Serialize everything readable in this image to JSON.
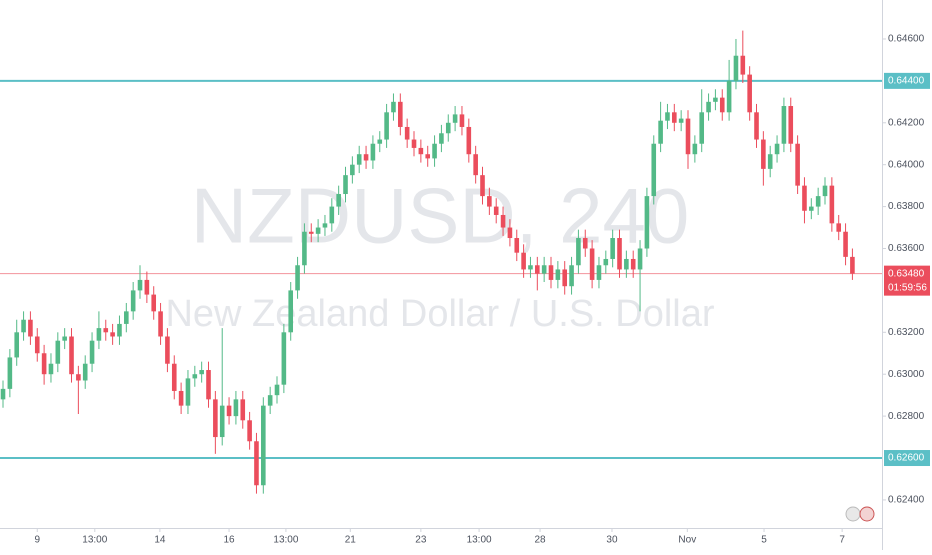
{
  "chart_data": {
    "type": "candlestick",
    "watermark": "NZDUSD, 240",
    "subtitle": "New Zealand Dollar / U.S. Dollar",
    "up_color": "#53b987",
    "down_color": "#eb4d5c",
    "ylim": [
      0.62266,
      0.64786
    ],
    "yticks": [
      {
        "value": 0.646,
        "label": "0.64600"
      },
      {
        "value": 0.642,
        "label": "0.64200"
      },
      {
        "value": 0.64,
        "label": "0.64000"
      },
      {
        "value": 0.638,
        "label": "0.63800"
      },
      {
        "value": 0.636,
        "label": "0.63600"
      },
      {
        "value": 0.632,
        "label": "0.63200"
      },
      {
        "value": 0.63,
        "label": "0.63000"
      },
      {
        "value": 0.628,
        "label": "0.62800"
      },
      {
        "value": 0.624,
        "label": "0.62400"
      }
    ],
    "xlim": [
      -0.44,
      128.32
    ],
    "xticks": [
      {
        "value": 5,
        "label": "9"
      },
      {
        "value": 13.4,
        "label": "13:00"
      },
      {
        "value": 22.9,
        "label": "14"
      },
      {
        "value": 33,
        "label": "16"
      },
      {
        "value": 41.3,
        "label": "13:00"
      },
      {
        "value": 50.7,
        "label": "21"
      },
      {
        "value": 61,
        "label": "23"
      },
      {
        "value": 69.5,
        "label": "13:00"
      },
      {
        "value": 78.4,
        "label": "28"
      },
      {
        "value": 88.9,
        "label": "30"
      },
      {
        "value": 99.9,
        "label": "Nov"
      },
      {
        "value": 111.1,
        "label": "5"
      },
      {
        "value": 122.5,
        "label": "7"
      }
    ],
    "hlines": [
      {
        "value": 0.644,
        "label": "0.64400",
        "color": "#5bbfc6"
      },
      {
        "value": 0.626,
        "label": "0.62600",
        "color": "#5bbfc6"
      }
    ],
    "last_price": {
      "value": 0.6348,
      "label": "0.63480",
      "countdown": "01:59:56",
      "color": "#eb4d5c"
    },
    "open": [
      0.6288,
      0.6293,
      0.6308,
      0.632,
      0.6326,
      0.6318,
      0.631,
      0.63,
      0.6305,
      0.6316,
      0.6318,
      0.63,
      0.6297,
      0.6305,
      0.6316,
      0.6322,
      0.632,
      0.6318,
      0.6324,
      0.633,
      0.634,
      0.6345,
      0.6338,
      0.633,
      0.6318,
      0.6305,
      0.6292,
      0.6285,
      0.6298,
      0.63,
      0.6302,
      0.6288,
      0.627,
      0.6285,
      0.628,
      0.6288,
      0.6278,
      0.6268,
      0.6247,
      0.6285,
      0.629,
      0.6295,
      0.632,
      0.634,
      0.6352,
      0.6368,
      0.6367,
      0.637,
      0.6372,
      0.638,
      0.6386,
      0.6395,
      0.64,
      0.6405,
      0.6402,
      0.641,
      0.6412,
      0.6425,
      0.643,
      0.6418,
      0.6412,
      0.6408,
      0.6405,
      0.6403,
      0.641,
      0.6415,
      0.642,
      0.6424,
      0.6418,
      0.6405,
      0.6395,
      0.6385,
      0.638,
      0.6376,
      0.637,
      0.6365,
      0.6358,
      0.635,
      0.6352,
      0.6348,
      0.6352,
      0.6345,
      0.635,
      0.6342,
      0.6352,
      0.6365,
      0.636,
      0.6345,
      0.6352,
      0.6355,
      0.6365,
      0.635,
      0.6355,
      0.635,
      0.636,
      0.6385,
      0.641,
      0.6421,
      0.6425,
      0.642,
      0.6422,
      0.6405,
      0.641,
      0.6425,
      0.643,
      0.6432,
      0.6425,
      0.644,
      0.6452,
      0.6443,
      0.6425,
      0.6412,
      0.6398,
      0.6405,
      0.641,
      0.6428,
      0.641,
      0.639,
      0.6378,
      0.638,
      0.6385,
      0.639,
      0.6372,
      0.6368,
      0.6356
    ],
    "high": [
      0.6297,
      0.6312,
      0.6326,
      0.633,
      0.633,
      0.6322,
      0.6314,
      0.631,
      0.632,
      0.6322,
      0.6322,
      0.6304,
      0.6309,
      0.632,
      0.633,
      0.6326,
      0.6324,
      0.6328,
      0.6334,
      0.6344,
      0.6352,
      0.6349,
      0.6342,
      0.6334,
      0.6322,
      0.6309,
      0.6296,
      0.6302,
      0.6304,
      0.6306,
      0.6306,
      0.6292,
      0.6322,
      0.6289,
      0.6292,
      0.6292,
      0.6282,
      0.6272,
      0.6289,
      0.6294,
      0.6299,
      0.6324,
      0.6344,
      0.6356,
      0.6372,
      0.6372,
      0.6374,
      0.6376,
      0.6384,
      0.639,
      0.6399,
      0.6404,
      0.6409,
      0.6409,
      0.6414,
      0.6416,
      0.6429,
      0.6434,
      0.6434,
      0.6422,
      0.6416,
      0.6412,
      0.6409,
      0.6414,
      0.6419,
      0.6424,
      0.6428,
      0.6428,
      0.6422,
      0.6409,
      0.6399,
      0.6389,
      0.6384,
      0.638,
      0.6374,
      0.6369,
      0.6362,
      0.6356,
      0.6356,
      0.6356,
      0.6356,
      0.6354,
      0.6354,
      0.6356,
      0.6369,
      0.6369,
      0.6364,
      0.6356,
      0.6359,
      0.6369,
      0.6369,
      0.6359,
      0.6359,
      0.6364,
      0.6389,
      0.6414,
      0.643,
      0.6429,
      0.6429,
      0.6426,
      0.6426,
      0.6414,
      0.6436,
      0.6434,
      0.6436,
      0.6436,
      0.645,
      0.646,
      0.6464,
      0.6447,
      0.6429,
      0.6416,
      0.6409,
      0.6414,
      0.6432,
      0.6432,
      0.6414,
      0.6394,
      0.6384,
      0.6389,
      0.6394,
      0.6394,
      0.6376,
      0.6372,
      0.636
    ],
    "low": [
      0.6284,
      0.6289,
      0.6304,
      0.6316,
      0.6314,
      0.6306,
      0.6295,
      0.6296,
      0.6301,
      0.6312,
      0.6296,
      0.6281,
      0.6293,
      0.6301,
      0.6312,
      0.6316,
      0.6314,
      0.6314,
      0.632,
      0.6326,
      0.6336,
      0.6334,
      0.6326,
      0.6314,
      0.6301,
      0.6288,
      0.6281,
      0.6281,
      0.6294,
      0.6296,
      0.6284,
      0.6262,
      0.6266,
      0.6276,
      0.6276,
      0.6274,
      0.6264,
      0.6243,
      0.6243,
      0.6281,
      0.6286,
      0.6291,
      0.6316,
      0.6336,
      0.6348,
      0.6363,
      0.6363,
      0.6366,
      0.6368,
      0.6376,
      0.6382,
      0.6391,
      0.6396,
      0.6398,
      0.6398,
      0.6406,
      0.6408,
      0.6421,
      0.6414,
      0.6408,
      0.6404,
      0.6401,
      0.6399,
      0.6399,
      0.6406,
      0.6411,
      0.6416,
      0.6414,
      0.6401,
      0.6391,
      0.6381,
      0.6376,
      0.6372,
      0.6366,
      0.6361,
      0.6354,
      0.6346,
      0.6346,
      0.634,
      0.6344,
      0.6341,
      0.6341,
      0.6338,
      0.6338,
      0.6348,
      0.6356,
      0.6341,
      0.6341,
      0.6348,
      0.6351,
      0.6346,
      0.6346,
      0.6346,
      0.633,
      0.6356,
      0.6381,
      0.6406,
      0.6417,
      0.6416,
      0.6416,
      0.6398,
      0.6401,
      0.6406,
      0.6421,
      0.6426,
      0.6421,
      0.6421,
      0.6436,
      0.6439,
      0.6421,
      0.6408,
      0.639,
      0.6394,
      0.6401,
      0.6406,
      0.6406,
      0.6386,
      0.6372,
      0.6374,
      0.6376,
      0.6381,
      0.6368,
      0.6364,
      0.6352,
      0.6345
    ],
    "close": [
      0.6293,
      0.6308,
      0.632,
      0.6326,
      0.6318,
      0.631,
      0.63,
      0.6305,
      0.6316,
      0.6318,
      0.63,
      0.6297,
      0.6305,
      0.6316,
      0.6322,
      0.632,
      0.6318,
      0.6324,
      0.633,
      0.634,
      0.6345,
      0.6338,
      0.633,
      0.6318,
      0.6305,
      0.6292,
      0.6285,
      0.6298,
      0.63,
      0.6302,
      0.6288,
      0.627,
      0.6285,
      0.628,
      0.6288,
      0.6278,
      0.6268,
      0.6247,
      0.6285,
      0.629,
      0.6295,
      0.632,
      0.634,
      0.6352,
      0.6368,
      0.6367,
      0.637,
      0.6372,
      0.638,
      0.6386,
      0.6395,
      0.64,
      0.6405,
      0.6402,
      0.641,
      0.6412,
      0.6425,
      0.643,
      0.6418,
      0.6412,
      0.6408,
      0.6405,
      0.6403,
      0.641,
      0.6415,
      0.642,
      0.6424,
      0.6418,
      0.6405,
      0.6395,
      0.6385,
      0.638,
      0.6376,
      0.637,
      0.6365,
      0.6358,
      0.635,
      0.6352,
      0.6348,
      0.6352,
      0.6345,
      0.635,
      0.6342,
      0.6352,
      0.6365,
      0.636,
      0.6345,
      0.6352,
      0.6355,
      0.6365,
      0.635,
      0.6355,
      0.635,
      0.636,
      0.6385,
      0.641,
      0.6421,
      0.6425,
      0.642,
      0.6422,
      0.6405,
      0.641,
      0.6425,
      0.643,
      0.6432,
      0.6425,
      0.644,
      0.6452,
      0.6443,
      0.6425,
      0.6412,
      0.6398,
      0.6405,
      0.641,
      0.6428,
      0.641,
      0.639,
      0.6378,
      0.638,
      0.6385,
      0.639,
      0.6372,
      0.6368,
      0.6356,
      0.6348
    ]
  }
}
